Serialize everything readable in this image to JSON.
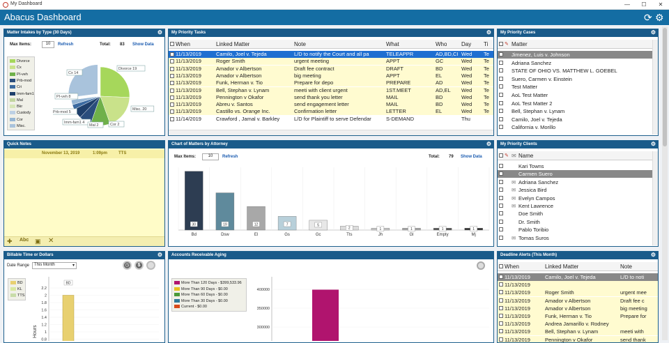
{
  "window": {
    "title": "My Dashboard",
    "minimize": "—",
    "maximize": "☐",
    "close": "✕"
  },
  "app": {
    "title": "Abacus Dashboard",
    "refresh_icon": "⟳",
    "settings_icon": "⚙"
  },
  "intakes": {
    "title": "Matter Intakes by Type (30 Days)",
    "max_items_label": "Max Items:",
    "max_items_value": "10",
    "refresh": "Refresh",
    "total_label": "Total:",
    "total_value": "83",
    "show_data": "Show Data",
    "legend": [
      {
        "name": "Divorce",
        "color": "#a6d75b"
      },
      {
        "name": "Cx",
        "color": "#c9e28a"
      },
      {
        "name": "PI-veh",
        "color": "#6fb04a"
      },
      {
        "name": "Prb-mod",
        "color": "#2a4d7c"
      },
      {
        "name": "Cri",
        "color": "#3b6aa0"
      },
      {
        "name": "Imm-fam1",
        "color": "#1e3f6b"
      },
      {
        "name": "Mal",
        "color": "#c2d6a0"
      },
      {
        "name": "Bkr",
        "color": "#d7e6b8"
      },
      {
        "name": "Custody",
        "color": "#bcd0e4"
      },
      {
        "name": "Cor",
        "color": "#96b6d4"
      },
      {
        "name": "Misc.",
        "color": "#a9c3dc"
      }
    ],
    "callouts": [
      "Cx 14",
      "Divorce 19",
      "PI-veh 8",
      "Prb-mod 5",
      "Imm-fam1 4",
      "Mal 2",
      "Cor 2",
      "Misc. 20"
    ]
  },
  "tasks": {
    "title": "My Priority Tasks",
    "columns": [
      "When",
      "Linked Matter",
      "Note",
      "What",
      "Who",
      "Day",
      "Ti"
    ],
    "rows": [
      [
        "11/13/2019",
        "Camilo, Joel v. Tejeda",
        "L/D to notify the Court and all pa",
        "TELEAPPR",
        "AD,BD,CI",
        "Wed",
        "Te"
      ],
      [
        "11/13/2019",
        "Roger Smith",
        "urgent meeting",
        "APPT",
        "GC",
        "Wed",
        "Te"
      ],
      [
        "11/13/2019",
        "Amador v Albertson",
        "Draft fee contract",
        "DRAFT",
        "BD",
        "Wed",
        "Te"
      ],
      [
        "11/13/2019",
        "Amador v Albertson",
        "big meeting",
        "APPT",
        "EL",
        "Wed",
        "Te"
      ],
      [
        "11/13/2019",
        "Funk, Herman v. Tio",
        "Prepare for depo",
        "PREPARE",
        "AD",
        "Wed",
        "Te"
      ],
      [
        "11/13/2019",
        "Bell, Stephan v. Lynam",
        "meeti with client urgent",
        "1ST.MEET",
        "AD,EL",
        "Wed",
        "Te"
      ],
      [
        "11/13/2019",
        "Pennington v Okafor",
        "send thank you letter",
        "MAIL",
        "BD",
        "Wed",
        "Te"
      ],
      [
        "11/13/2019",
        "Abreu v. Santos",
        "send engagement letter",
        "MAIL",
        "BD",
        "Wed",
        "Te"
      ],
      [
        "11/13/2019",
        "Castillo vs. Orange Inc.",
        "Confirmation letter",
        "LETTER",
        "EL",
        "Wed",
        "Te"
      ],
      [
        "11/14/2019",
        "Crawford , Jamal v. Barkley",
        "L/D for Plaintiff to serve Defendar",
        "S-DEMAND",
        "",
        "Thu",
        ""
      ]
    ]
  },
  "cases": {
    "title": "My Priority Cases",
    "column": "Matter",
    "rows": [
      "Jimenez, Luis v. Johnson",
      "Adriana Sanchez",
      "STATE OF OHIO VS. MATTHEW L. GOEBEL",
      "Suero, Carmen v. Einstein",
      "Test Matter",
      "AoL Test Matter",
      "AoL Test Matter 2",
      "Bell, Stephan v. Lynam",
      "Camilo, Joel v. Tejeda",
      "California v. Morillo"
    ]
  },
  "notes": {
    "title": "Quick Notes",
    "date": "November 13, 2019",
    "time": "1:09pm",
    "user": "TTS"
  },
  "attorney_chart": {
    "title": "Chart of Matters by Attorney",
    "max_items_label": "Max Items:",
    "max_items_value": "10",
    "refresh": "Refresh",
    "total_label": "Total:",
    "total_value": "79",
    "show_data": "Show Data"
  },
  "chart_data": [
    {
      "type": "bar",
      "title": "Chart of Matters by Attorney",
      "categories": [
        "Bd",
        "Dsw",
        "El",
        "Gs",
        "Gc",
        "Tts",
        "Jh",
        "Gl",
        "Empty",
        "Mj"
      ],
      "values": [
        30,
        19,
        12,
        7,
        5,
        2,
        1,
        1,
        1,
        1
      ],
      "colors": [
        "#2d3d52",
        "#5f8a9c",
        "#a8a8a8",
        "#b8d0da",
        "#e8e8e8",
        "#dcdcdc",
        "#c8c8c8",
        "#a8a8a8",
        "#555555",
        "#333333"
      ],
      "ylim": [
        0,
        32
      ]
    },
    {
      "type": "pie",
      "title": "Matter Intakes by Type (30 Days)",
      "categories": [
        "Divorce",
        "Cx",
        "PI-veh",
        "Prb-mod",
        "Imm-fam1",
        "Mal",
        "Cor",
        "Misc."
      ],
      "values": [
        19,
        14,
        8,
        5,
        4,
        2,
        2,
        20
      ]
    },
    {
      "type": "bar",
      "title": "Billable Time or Dollars",
      "categories": [
        "BD"
      ],
      "values": [
        2
      ],
      "ylabel": "Hours",
      "yticks": [
        "2.2",
        "2",
        "1.8",
        "1.6",
        "1.4",
        "1.2",
        "1",
        "0.8"
      ]
    },
    {
      "type": "bar",
      "title": "Accounts Receivable Aging",
      "categories": [
        "More Than 120 Days"
      ],
      "values": [
        399533.96
      ],
      "yticks": [
        "400000",
        "350000",
        "300000",
        "250000"
      ]
    }
  ],
  "clients": {
    "title": "My Priority Clients",
    "column": "Name",
    "rows": [
      "Kari Towns",
      "Carmen Suero",
      "Adriana Sanchez",
      "Jessica Bird",
      "Evelyn Campos",
      "Kent Lawrence",
      "Doe Smith",
      "Dr. Smith",
      "Pablo Toribio",
      "Tomas Suros"
    ]
  },
  "billable": {
    "title": "Billable Time or Dollars",
    "date_range_label": "Date Range",
    "date_range_value": "This Month",
    "legend": [
      "BD",
      "KL",
      "TTS"
    ],
    "bar_label": "BD",
    "y_axis": "Hours"
  },
  "ar": {
    "title": "Accounts Receivable Aging",
    "legend": [
      {
        "label": "More Than 120 Days - $399,533.96",
        "color": "#b0146e"
      },
      {
        "label": "More Than 90 Days - $0.00",
        "color": "#e8c020"
      },
      {
        "label": "More Than 60 Days - $0.00",
        "color": "#4a9a3a"
      },
      {
        "label": "More Than 30 Days - $0.00",
        "color": "#2f7a9a"
      },
      {
        "label": "Current - $0.00",
        "color": "#d84a1a"
      }
    ]
  },
  "deadlines": {
    "title": "Deadline Alerts (This Month)",
    "columns": [
      "When",
      "Linked Matter",
      "Note"
    ],
    "rows": [
      [
        "11/13/2019",
        "Camilo, Joel v. Tejeda",
        "L/D to noti"
      ],
      [
        "11/13/2019",
        "",
        ""
      ],
      [
        "11/13/2019",
        "Roger Smith",
        "urgent mee"
      ],
      [
        "11/13/2019",
        "Amador v Albertson",
        "Draft fee c"
      ],
      [
        "11/13/2019",
        "Amador v Albertson",
        "big meeting"
      ],
      [
        "11/13/2019",
        "Funk, Herman v. Tio",
        "Prepare for"
      ],
      [
        "11/13/2019",
        "Andrea Jamarillo v. Rodney",
        ""
      ],
      [
        "11/13/2019",
        "Bell, Stephan v. Lynam",
        "meeti with"
      ],
      [
        "11/13/2019",
        "Pennington v Okafor",
        "send thank"
      ]
    ]
  }
}
